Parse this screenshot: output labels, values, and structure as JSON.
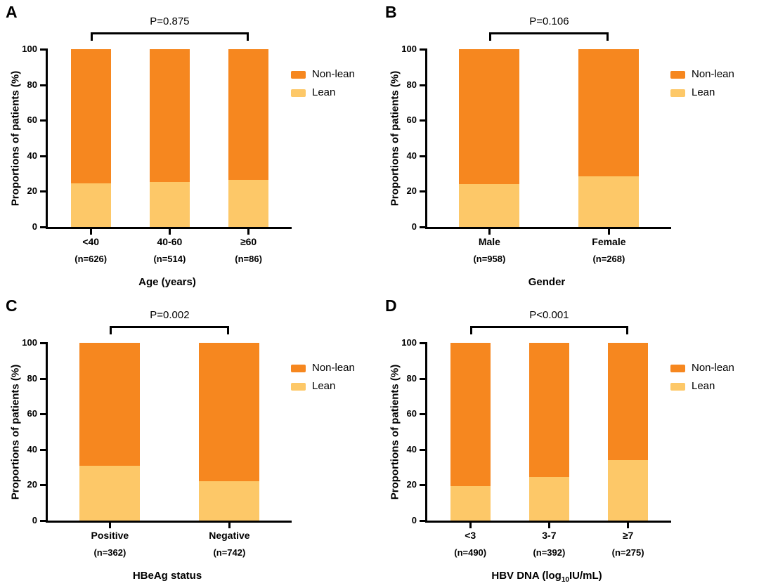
{
  "colors": {
    "non_lean": "#f6871f",
    "lean": "#fdc868",
    "axis": "#000000",
    "background": "#ffffff"
  },
  "chart_data": [
    {
      "panel": "A",
      "type": "bar",
      "stacked": true,
      "percent_scale": true,
      "p_value": "P=0.875",
      "bracket_span": [
        0,
        2
      ],
      "title": "",
      "xlabel": "Age (years)",
      "ylabel": "Proportions of patients (%)",
      "ylim": [
        0,
        100
      ],
      "yticks": [
        0,
        20,
        40,
        60,
        80,
        100
      ],
      "categories": [
        "<40",
        "40-60",
        "≥60"
      ],
      "counts": [
        "(n=626)",
        "(n=514)",
        "(n=86)"
      ],
      "series": [
        {
          "name": "Non-lean",
          "values": [
            75.5,
            74.8,
            73.7
          ]
        },
        {
          "name": "Lean",
          "values": [
            24.5,
            25.2,
            26.3
          ]
        }
      ],
      "legend": [
        "Non-lean",
        "Lean"
      ],
      "legend_position": "right"
    },
    {
      "panel": "B",
      "type": "bar",
      "stacked": true,
      "percent_scale": true,
      "p_value": "P=0.106",
      "bracket_span": [
        0,
        1
      ],
      "title": "",
      "xlabel": "Gender",
      "ylabel": "Proportions of patients (%)",
      "ylim": [
        0,
        100
      ],
      "yticks": [
        0,
        20,
        40,
        60,
        80,
        100
      ],
      "categories": [
        "Male",
        "Female"
      ],
      "counts": [
        "(n=958)",
        "(n=268)"
      ],
      "series": [
        {
          "name": "Non-lean",
          "values": [
            76.0,
            71.5
          ]
        },
        {
          "name": "Lean",
          "values": [
            24.0,
            28.5
          ]
        }
      ],
      "legend": [
        "Non-lean",
        "Lean"
      ],
      "legend_position": "right"
    },
    {
      "panel": "C",
      "type": "bar",
      "stacked": true,
      "percent_scale": true,
      "p_value": "P=0.002",
      "bracket_span": [
        0,
        1
      ],
      "title": "",
      "xlabel": "HBeAg status",
      "ylabel": "Proportions of patients (%)",
      "ylim": [
        0,
        100
      ],
      "yticks": [
        0,
        20,
        40,
        60,
        80,
        100
      ],
      "categories": [
        "Positive",
        "Negative"
      ],
      "counts": [
        "(n=362)",
        "(n=742)"
      ],
      "series": [
        {
          "name": "Non-lean",
          "values": [
            69.0,
            78.0
          ]
        },
        {
          "name": "Lean",
          "values": [
            31.0,
            22.0
          ]
        }
      ],
      "legend": [
        "Non-lean",
        "Lean"
      ],
      "legend_position": "right"
    },
    {
      "panel": "D",
      "type": "bar",
      "stacked": true,
      "percent_scale": true,
      "p_value": "P<0.001",
      "bracket_span": [
        0,
        2
      ],
      "title": "",
      "xlabel": "HBV DNA (log10IU/mL)",
      "xlabel_parts": {
        "pre": "HBV DNA (log",
        "sub": "10",
        "post": "IU/mL)"
      },
      "ylabel": "Proportions of patients (%)",
      "ylim": [
        0,
        100
      ],
      "yticks": [
        0,
        20,
        40,
        60,
        80,
        100
      ],
      "categories": [
        "<3",
        "3-7",
        "≥7"
      ],
      "counts": [
        "(n=490)",
        "(n=392)",
        "(n=275)"
      ],
      "series": [
        {
          "name": "Non-lean",
          "values": [
            80.5,
            75.5,
            66.0
          ]
        },
        {
          "name": "Lean",
          "values": [
            19.5,
            24.5,
            34.0
          ]
        }
      ],
      "legend": [
        "Non-lean",
        "Lean"
      ],
      "legend_position": "right"
    }
  ]
}
